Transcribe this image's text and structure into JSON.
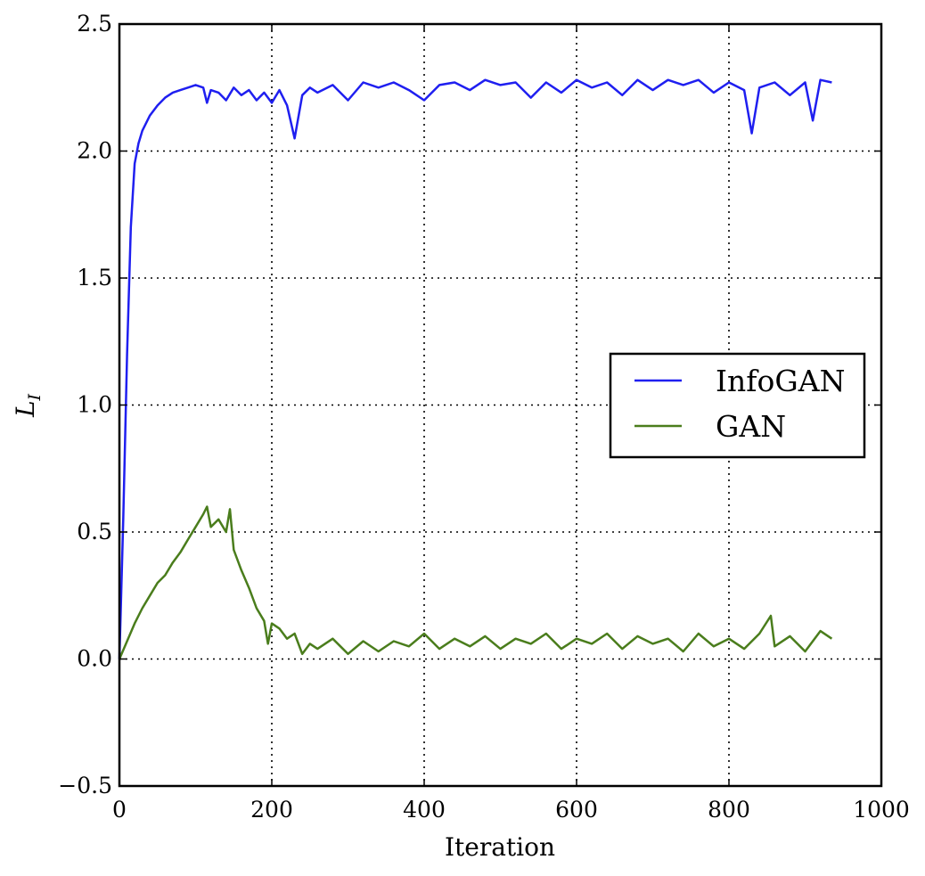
{
  "chart_data": {
    "type": "line",
    "xlabel": "Iteration",
    "ylabel": "L",
    "ylabel_subscript": "I",
    "xlim": [
      0,
      1000
    ],
    "ylim": [
      -0.5,
      2.5
    ],
    "x_ticks": [
      0,
      200,
      400,
      600,
      800,
      1000
    ],
    "x_tick_labels": [
      "0",
      "200",
      "400",
      "600",
      "800",
      "1000"
    ],
    "y_ticks": [
      -0.5,
      0.0,
      0.5,
      1.0,
      1.5,
      2.0,
      2.5
    ],
    "y_tick_labels": [
      "−0.5",
      "0.0",
      "0.5",
      "1.0",
      "1.5",
      "2.0",
      "2.5"
    ],
    "grid": true,
    "legend_position": "right",
    "series": [
      {
        "name": "InfoGAN",
        "color": "#1f1ff0",
        "x": [
          0,
          5,
          10,
          15,
          20,
          25,
          30,
          40,
          50,
          60,
          70,
          80,
          90,
          100,
          110,
          115,
          120,
          130,
          140,
          150,
          160,
          170,
          180,
          190,
          200,
          210,
          220,
          230,
          240,
          250,
          260,
          280,
          300,
          320,
          340,
          360,
          380,
          400,
          420,
          440,
          460,
          480,
          500,
          520,
          540,
          560,
          580,
          600,
          620,
          640,
          660,
          680,
          700,
          720,
          740,
          760,
          780,
          800,
          820,
          830,
          840,
          860,
          880,
          900,
          910,
          920,
          935
        ],
        "y": [
          0.0,
          0.55,
          1.2,
          1.7,
          1.95,
          2.03,
          2.08,
          2.14,
          2.18,
          2.21,
          2.23,
          2.24,
          2.25,
          2.26,
          2.25,
          2.19,
          2.24,
          2.23,
          2.2,
          2.25,
          2.22,
          2.24,
          2.2,
          2.23,
          2.19,
          2.24,
          2.18,
          2.05,
          2.22,
          2.25,
          2.23,
          2.26,
          2.2,
          2.27,
          2.25,
          2.27,
          2.24,
          2.2,
          2.26,
          2.27,
          2.24,
          2.28,
          2.26,
          2.27,
          2.21,
          2.27,
          2.23,
          2.28,
          2.25,
          2.27,
          2.22,
          2.28,
          2.24,
          2.28,
          2.26,
          2.28,
          2.23,
          2.27,
          2.24,
          2.07,
          2.25,
          2.27,
          2.22,
          2.27,
          2.12,
          2.28,
          2.27
        ]
      },
      {
        "name": "GAN",
        "color": "#4a7d1c",
        "x": [
          0,
          10,
          20,
          30,
          40,
          50,
          60,
          70,
          80,
          90,
          100,
          110,
          115,
          120,
          130,
          140,
          145,
          150,
          160,
          170,
          180,
          190,
          195,
          200,
          210,
          220,
          230,
          240,
          250,
          260,
          280,
          300,
          320,
          340,
          360,
          380,
          400,
          420,
          440,
          460,
          480,
          500,
          520,
          540,
          560,
          580,
          600,
          620,
          640,
          660,
          680,
          700,
          720,
          740,
          760,
          780,
          800,
          820,
          840,
          855,
          860,
          880,
          900,
          920,
          935
        ],
        "y": [
          0.0,
          0.07,
          0.14,
          0.2,
          0.25,
          0.3,
          0.33,
          0.38,
          0.42,
          0.47,
          0.52,
          0.57,
          0.6,
          0.52,
          0.55,
          0.5,
          0.59,
          0.43,
          0.35,
          0.28,
          0.2,
          0.15,
          0.06,
          0.14,
          0.12,
          0.08,
          0.1,
          0.02,
          0.06,
          0.04,
          0.08,
          0.02,
          0.07,
          0.03,
          0.07,
          0.05,
          0.1,
          0.04,
          0.08,
          0.05,
          0.09,
          0.04,
          0.08,
          0.06,
          0.1,
          0.04,
          0.08,
          0.06,
          0.1,
          0.04,
          0.09,
          0.06,
          0.08,
          0.03,
          0.1,
          0.05,
          0.08,
          0.04,
          0.1,
          0.17,
          0.05,
          0.09,
          0.03,
          0.11,
          0.08
        ]
      }
    ]
  }
}
